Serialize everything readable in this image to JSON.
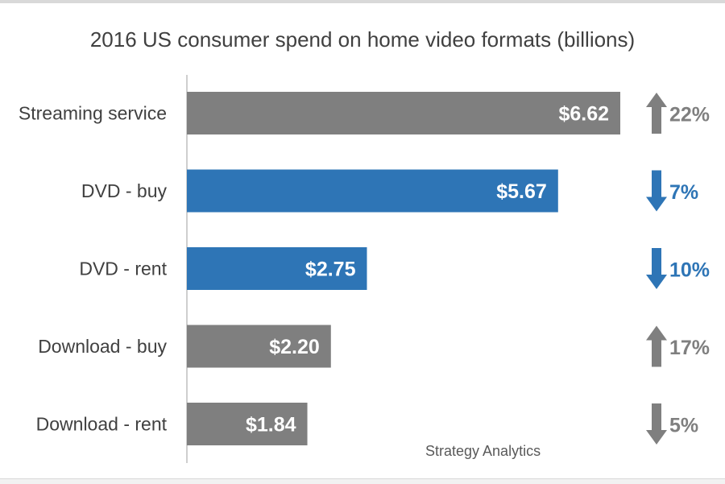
{
  "chart_data": {
    "type": "bar",
    "orientation": "horizontal",
    "title": "2016 US consumer spend on home video formats (billions)",
    "xlabel": "",
    "ylabel": "",
    "categories": [
      "Streaming service",
      "DVD - buy",
      "DVD - rent",
      "Download - buy",
      "Download - rent"
    ],
    "values": [
      6.62,
      5.67,
      2.75,
      2.2,
      1.84
    ],
    "value_labels": [
      "$6.62",
      "$5.67",
      "$2.75",
      "$2.20",
      "$1.84"
    ],
    "bar_colors": [
      "#7f7f7f",
      "#2e75b6",
      "#2e75b6",
      "#7f7f7f",
      "#7f7f7f"
    ],
    "changes": [
      {
        "direction": "up",
        "label": "22%",
        "color": "#7f7f7f"
      },
      {
        "direction": "down",
        "label": "7%",
        "color": "#2e75b6"
      },
      {
        "direction": "down",
        "label": "10%",
        "color": "#2e75b6"
      },
      {
        "direction": "up",
        "label": "17%",
        "color": "#7f7f7f"
      },
      {
        "direction": "down",
        "label": "5%",
        "color": "#7f7f7f"
      }
    ],
    "xlim": [
      0,
      7
    ],
    "grid": false,
    "legend": "none",
    "source": "Strategy Analytics"
  }
}
